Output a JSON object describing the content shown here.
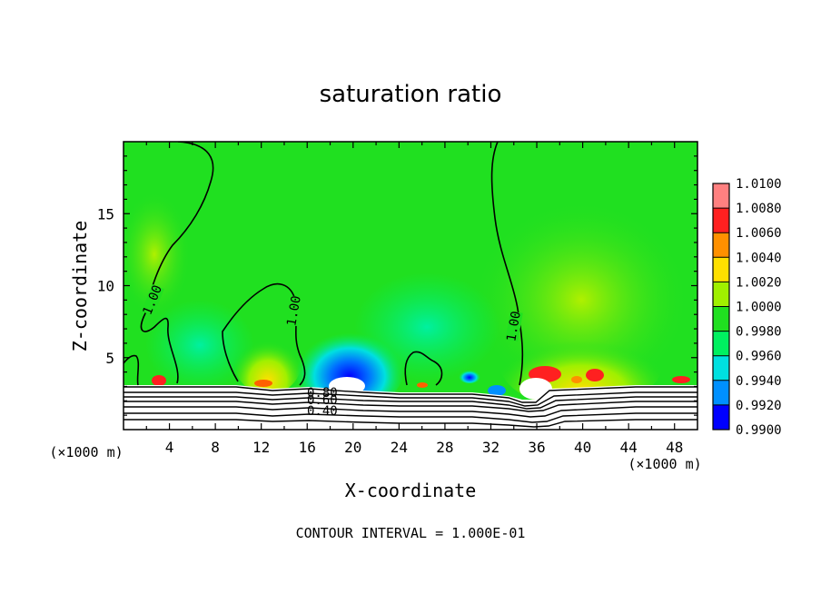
{
  "chart_data": {
    "type": "heatmap",
    "title": "saturation ratio",
    "xlabel": "X-coordinate",
    "ylabel": "Z-coordinate",
    "x_units": "(×1000 m)",
    "y_units": "(×1000 m)",
    "xlim": [
      0,
      50
    ],
    "ylim": [
      0,
      20
    ],
    "x_ticks": [
      "4",
      "8",
      "12",
      "16",
      "20",
      "24",
      "28",
      "32",
      "36",
      "40",
      "44",
      "48"
    ],
    "y_ticks": [
      "5",
      "10",
      "15"
    ],
    "footer": "CONTOUR INTERVAL = 1.000E-01",
    "colorbar": {
      "levels": [
        "1.0100",
        "1.0080",
        "1.0060",
        "1.0040",
        "1.0020",
        "1.0000",
        "0.9980",
        "0.9960",
        "0.9940",
        "0.9920",
        "0.9900"
      ],
      "colors": [
        "#ff8080",
        "#ff2020",
        "#ff9000",
        "#ffe000",
        "#a0f000",
        "#20e020",
        "#00f060",
        "#00e0e0",
        "#0090ff",
        "#0000ff",
        "#8000c0"
      ]
    },
    "contour_labels": [
      "1.00",
      "1.00",
      "1.00",
      "0.80",
      "0.60",
      "0.40"
    ],
    "grid": false,
    "legend": "colorbar-right"
  }
}
